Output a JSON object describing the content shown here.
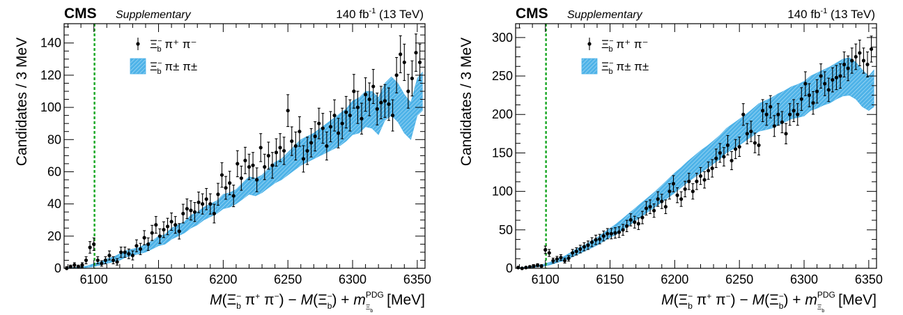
{
  "chart_data": [
    {
      "type": "scatter",
      "experiment": "CMS",
      "tag": "Supplementary",
      "lumi": "140 fb",
      "lumi_exp": "-1",
      "energy": "(13 TeV)",
      "ylabel": "Candidates / 3 MeV",
      "xlabel": {
        "M": "M",
        "open": "(",
        "xi": "Ξ",
        "sub_b": "b",
        "sup_minus": "−",
        "pi": "π",
        "plus": "+",
        "close": ")",
        "dash": " − ",
        "mdash_plus": " + ",
        "m": "m",
        "pdg": "PDG",
        "unit": "[MeV]"
      },
      "xlim": [
        6077,
        6356
      ],
      "ylim": [
        0,
        152
      ],
      "xticks": [
        6100,
        6150,
        6200,
        6250,
        6300,
        6350
      ],
      "yticks": [
        0,
        20,
        40,
        60,
        80,
        100,
        120,
        140
      ],
      "threshold_line": 6100.5,
      "colors": {
        "data": "#000000",
        "band": "#4fb3e8",
        "threshold": "#1faa2a"
      },
      "legend": {
        "data_label": {
          "xi": "Ξ",
          "sub": "b",
          "sup": "−",
          "rest": " π⁺ π⁻"
        },
        "band_label": {
          "xi": "Ξ",
          "sub": "b",
          "sup": "−",
          "rest": " π± π±"
        }
      },
      "series": [
        {
          "kind": "data",
          "x": [
            6079,
            6082,
            6085,
            6088,
            6091,
            6094,
            6097,
            6100,
            6103,
            6106,
            6109,
            6112,
            6115,
            6118,
            6121,
            6124,
            6127,
            6130,
            6133,
            6136,
            6139,
            6142,
            6145,
            6148,
            6151,
            6154,
            6157,
            6160,
            6163,
            6166,
            6169,
            6172,
            6175,
            6178,
            6181,
            6184,
            6187,
            6190,
            6193,
            6196,
            6199,
            6202,
            6205,
            6208,
            6211,
            6214,
            6217,
            6220,
            6223,
            6226,
            6229,
            6232,
            6235,
            6238,
            6241,
            6244,
            6247,
            6250,
            6253,
            6256,
            6259,
            6262,
            6265,
            6268,
            6271,
            6274,
            6277,
            6280,
            6283,
            6286,
            6289,
            6292,
            6295,
            6298,
            6301,
            6304,
            6307,
            6310,
            6313,
            6316,
            6319,
            6322,
            6325,
            6328,
            6331,
            6334,
            6337,
            6340,
            6343,
            6346,
            6349,
            6352
          ],
          "y": [
            0,
            1,
            2,
            1,
            2,
            5,
            13,
            15,
            5,
            3,
            5,
            8,
            5,
            4,
            10,
            10,
            9,
            8,
            14,
            12,
            19,
            15,
            22,
            27,
            20,
            24,
            26,
            29,
            27,
            23,
            34,
            37,
            36,
            35,
            41,
            40,
            43,
            40,
            34,
            46,
            58,
            50,
            53,
            45,
            65,
            56,
            67,
            63,
            64,
            55,
            75,
            63,
            70,
            64,
            72,
            75,
            73,
            98,
            79,
            76,
            85,
            68,
            73,
            78,
            82,
            90,
            87,
            76,
            88,
            95,
            84,
            90,
            97,
            95,
            110,
            100,
            93,
            108,
            105,
            113,
            99,
            103,
            104,
            102,
            95,
            120,
            133,
            128,
            110,
            118,
            134,
            128
          ],
          "err": [
            1,
            1,
            1.5,
            1,
            1.5,
            2.2,
            3.6,
            3.9,
            2.2,
            1.7,
            2.2,
            2.8,
            2.2,
            2,
            3.2,
            3.2,
            3,
            2.8,
            3.7,
            3.5,
            4.4,
            3.9,
            4.7,
            5.2,
            4.5,
            4.9,
            5.1,
            5.4,
            5.2,
            4.8,
            5.8,
            6.1,
            6,
            5.9,
            6.4,
            6.3,
            6.6,
            6.3,
            5.8,
            6.8,
            7.6,
            7.1,
            7.3,
            6.7,
            8.1,
            7.5,
            8.2,
            7.9,
            8,
            7.4,
            8.7,
            7.9,
            8.4,
            8,
            8.5,
            8.7,
            8.5,
            9.9,
            8.9,
            8.7,
            9.2,
            8.2,
            8.5,
            8.8,
            9.1,
            9.5,
            9.3,
            8.7,
            9.4,
            9.7,
            9.2,
            9.5,
            9.8,
            9.7,
            10.5,
            10,
            9.6,
            10.4,
            10.2,
            10.6,
            9.9,
            10.1,
            10.2,
            10.1,
            9.7,
            11,
            11.5,
            11.3,
            10.5,
            10.9,
            11.6,
            11.3
          ]
        },
        {
          "kind": "band",
          "x": [
            6080,
            6085,
            6090,
            6095,
            6100,
            6105,
            6110,
            6115,
            6120,
            6125,
            6130,
            6135,
            6140,
            6145,
            6150,
            6155,
            6160,
            6165,
            6170,
            6175,
            6180,
            6185,
            6190,
            6195,
            6200,
            6205,
            6210,
            6215,
            6220,
            6225,
            6230,
            6235,
            6240,
            6245,
            6250,
            6255,
            6260,
            6265,
            6270,
            6275,
            6280,
            6285,
            6290,
            6295,
            6300,
            6305,
            6310,
            6315,
            6320,
            6325,
            6330,
            6335,
            6340,
            6345,
            6350,
            6354
          ],
          "lower": [
            0,
            0,
            0,
            0.5,
            1,
            2,
            3,
            4,
            5,
            7,
            8,
            9,
            10,
            12,
            14,
            15,
            18,
            20,
            22,
            25,
            27,
            30,
            32,
            34,
            37,
            38,
            40,
            43,
            46,
            45,
            47,
            50,
            53,
            55,
            58,
            61,
            64,
            66,
            68,
            70,
            72,
            74,
            76,
            79,
            83,
            84,
            88,
            87,
            83,
            92,
            95,
            91,
            84,
            80,
            95,
            98
          ],
          "upper": [
            0.5,
            0.5,
            1,
            1.5,
            3,
            4,
            6,
            7,
            9,
            11,
            12,
            13,
            15,
            17,
            20,
            21,
            25,
            27,
            29,
            33,
            35,
            38,
            40,
            42,
            46,
            47,
            49,
            53,
            57,
            56,
            58,
            62,
            66,
            68,
            72,
            76,
            80,
            82,
            84,
            87,
            90,
            93,
            96,
            99,
            104,
            106,
            110,
            110,
            106,
            115,
            119,
            115,
            108,
            103,
            118,
            122
          ]
        }
      ]
    },
    {
      "type": "scatter",
      "experiment": "CMS",
      "tag": "Supplementary",
      "lumi": "140 fb",
      "lumi_exp": "-1",
      "energy": "(13 TeV)",
      "ylabel": "Candidates / 3 MeV",
      "xlabel": {
        "M": "M",
        "open": "(",
        "xi": "Ξ",
        "sub_b": "b",
        "sup_minus": "−",
        "pi": "π",
        "plus": "+",
        "close": ")",
        "dash": " − ",
        "mdash_plus": " + ",
        "m": "m",
        "pdg": "PDG",
        "unit": "[MeV]"
      },
      "xlim": [
        6077,
        6356
      ],
      "ylim": [
        0,
        318
      ],
      "xticks": [
        6100,
        6150,
        6200,
        6250,
        6300,
        6350
      ],
      "yticks": [
        0,
        50,
        100,
        150,
        200,
        250,
        300
      ],
      "threshold_line": 6100.5,
      "colors": {
        "data": "#000000",
        "band": "#4fb3e8",
        "threshold": "#1faa2a"
      },
      "legend": {
        "data_label": {
          "xi": "Ξ",
          "sub": "b",
          "sup": "−",
          "rest": " π⁺ π⁻"
        },
        "band_label": {
          "xi": "Ξ",
          "sub": "b",
          "sup": "−",
          "rest": " π± π±"
        }
      },
      "series": [
        {
          "kind": "data",
          "x": [
            6079,
            6082,
            6085,
            6088,
            6091,
            6094,
            6097,
            6100,
            6103,
            6106,
            6109,
            6112,
            6115,
            6118,
            6121,
            6124,
            6127,
            6130,
            6133,
            6136,
            6139,
            6142,
            6145,
            6148,
            6151,
            6154,
            6157,
            6160,
            6163,
            6166,
            6169,
            6172,
            6175,
            6178,
            6181,
            6184,
            6187,
            6190,
            6193,
            6196,
            6199,
            6202,
            6205,
            6208,
            6211,
            6214,
            6217,
            6220,
            6223,
            6226,
            6229,
            6232,
            6235,
            6238,
            6241,
            6244,
            6247,
            6250,
            6253,
            6256,
            6259,
            6262,
            6265,
            6268,
            6271,
            6274,
            6277,
            6280,
            6283,
            6286,
            6289,
            6292,
            6295,
            6298,
            6301,
            6304,
            6307,
            6310,
            6313,
            6316,
            6319,
            6322,
            6325,
            6328,
            6331,
            6334,
            6337,
            6340,
            6343,
            6346,
            6349,
            6352
          ],
          "y": [
            1,
            0,
            1,
            2,
            3,
            4,
            3,
            24,
            20,
            10,
            12,
            14,
            10,
            13,
            20,
            22,
            25,
            28,
            30,
            34,
            37,
            38,
            42,
            45,
            45,
            46,
            47,
            50,
            55,
            63,
            60,
            58,
            66,
            78,
            80,
            75,
            90,
            87,
            80,
            100,
            110,
            95,
            90,
            103,
            113,
            100,
            113,
            120,
            115,
            127,
            130,
            143,
            150,
            145,
            160,
            140,
            155,
            158,
            200,
            175,
            178,
            163,
            160,
            205,
            200,
            210,
            185,
            200,
            190,
            175,
            200,
            205,
            200,
            220,
            240,
            225,
            215,
            230,
            250,
            240,
            232,
            245,
            248,
            250,
            265,
            260,
            270,
            275,
            280,
            270,
            265,
            285
          ],
          "err": [
            1,
            1,
            1,
            1.4,
            1.7,
            2,
            1.7,
            4.9,
            4.5,
            3.2,
            3.5,
            3.7,
            3.2,
            3.6,
            4.5,
            4.7,
            5,
            5.3,
            5.5,
            5.8,
            6.1,
            6.2,
            6.5,
            6.7,
            6.7,
            6.8,
            6.9,
            7.1,
            7.4,
            7.9,
            7.7,
            7.6,
            8.1,
            8.8,
            8.9,
            8.7,
            9.5,
            9.3,
            8.9,
            10,
            10.5,
            9.7,
            9.5,
            10.1,
            10.6,
            10,
            10.6,
            11,
            10.7,
            11.3,
            11.4,
            12,
            12.2,
            12,
            12.6,
            11.8,
            12.4,
            12.6,
            14.1,
            13.2,
            13.3,
            12.8,
            12.6,
            14.3,
            14.1,
            14.5,
            13.6,
            14.1,
            13.8,
            13.2,
            14.1,
            14.3,
            14.1,
            14.8,
            15.5,
            15,
            14.7,
            15.2,
            15.8,
            15.5,
            15.2,
            15.7,
            15.7,
            15.8,
            16.3,
            16.1,
            16.4,
            16.6,
            16.7,
            16.4,
            16.3,
            16.9
          ]
        },
        {
          "kind": "band",
          "x": [
            6080,
            6085,
            6090,
            6095,
            6100,
            6105,
            6110,
            6115,
            6120,
            6125,
            6130,
            6135,
            6140,
            6145,
            6150,
            6155,
            6160,
            6165,
            6170,
            6175,
            6180,
            6185,
            6190,
            6195,
            6200,
            6205,
            6210,
            6215,
            6220,
            6225,
            6230,
            6235,
            6240,
            6245,
            6250,
            6255,
            6260,
            6265,
            6270,
            6275,
            6280,
            6285,
            6290,
            6295,
            6300,
            6305,
            6310,
            6315,
            6320,
            6325,
            6330,
            6335,
            6340,
            6345,
            6350,
            6354
          ],
          "lower": [
            0,
            0.5,
            1,
            2,
            3,
            5,
            8,
            10,
            14,
            18,
            22,
            26,
            30,
            35,
            40,
            44,
            50,
            56,
            62,
            68,
            74,
            80,
            86,
            92,
            98,
            105,
            112,
            118,
            124,
            130,
            136,
            142,
            150,
            155,
            160,
            166,
            172,
            178,
            180,
            182,
            186,
            190,
            194,
            196,
            198,
            205,
            208,
            212,
            215,
            220,
            224,
            225,
            220,
            210,
            205,
            210
          ],
          "upper": [
            1,
            1.5,
            2.5,
            4,
            6,
            9,
            13,
            16,
            21,
            26,
            30,
            35,
            40,
            46,
            52,
            58,
            65,
            72,
            79,
            86,
            93,
            100,
            108,
            116,
            124,
            131,
            139,
            146,
            153,
            159,
            166,
            173,
            182,
            188,
            194,
            200,
            207,
            214,
            218,
            222,
            227,
            231,
            236,
            239,
            243,
            250,
            254,
            258,
            262,
            267,
            272,
            274,
            268,
            258,
            250,
            258
          ]
        }
      ]
    }
  ]
}
